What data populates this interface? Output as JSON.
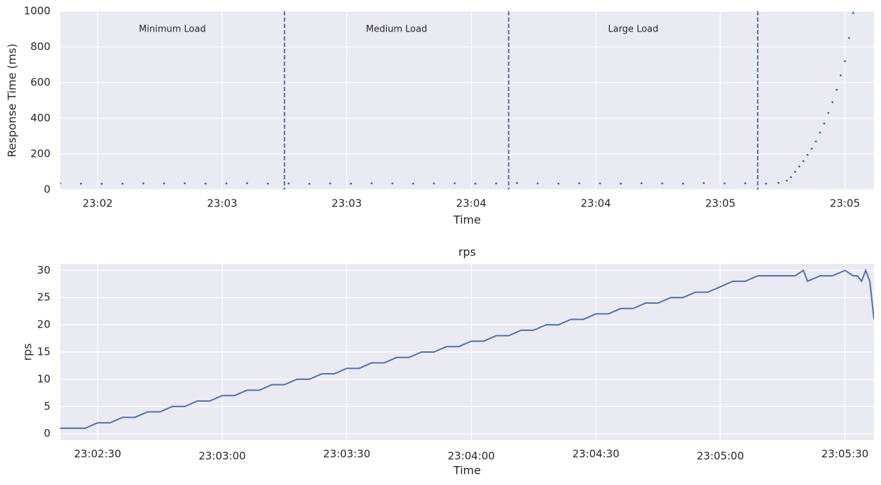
{
  "chart_data": [
    {
      "type": "scatter",
      "ylabel": "Response Time (ms)",
      "xlabel": "Time",
      "color": "#1f77b4",
      "x": [
        "23:02:21",
        "23:02:26",
        "23:02:31",
        "23:02:36",
        "23:02:41",
        "23:02:46",
        "23:02:51",
        "23:02:56",
        "23:03:01",
        "23:03:06",
        "23:03:11",
        "23:03:16",
        "23:03:21",
        "23:03:26",
        "23:03:31",
        "23:03:36",
        "23:03:41",
        "23:03:46",
        "23:03:51",
        "23:03:56",
        "23:04:01",
        "23:04:06",
        "23:04:11",
        "23:04:16",
        "23:04:21",
        "23:04:26",
        "23:04:31",
        "23:04:36",
        "23:04:41",
        "23:04:46",
        "23:04:51",
        "23:04:56",
        "23:05:01",
        "23:05:06",
        "23:05:11",
        "23:05:14",
        "23:05:16",
        "23:05:17",
        "23:05:18",
        "23:05:19",
        "23:05:20",
        "23:05:21",
        "23:05:22",
        "23:05:23",
        "23:05:24",
        "23:05:25",
        "23:05:26",
        "23:05:27",
        "23:05:28",
        "23:05:29",
        "23:05:30",
        "23:05:31",
        "23:05:32"
      ],
      "values": [
        35,
        34,
        33,
        34,
        35,
        35,
        36,
        34,
        35,
        36,
        34,
        35,
        33,
        35,
        34,
        36,
        35,
        34,
        35,
        36,
        34,
        35,
        37,
        35,
        34,
        36,
        35,
        34,
        36,
        35,
        34,
        37,
        35,
        36,
        34,
        38,
        50,
        70,
        100,
        130,
        160,
        195,
        230,
        270,
        320,
        370,
        430,
        490,
        560,
        640,
        720,
        850,
        990
      ],
      "vlines": [
        "23:03:15",
        "23:04:09",
        "23:05:09"
      ],
      "annotations": [
        "Minimum Load",
        "Medium Load",
        "Large Load"
      ],
      "xlim": [
        "23:02:21",
        "23:05:37"
      ],
      "xticks": [
        {
          "value": "23:02:30",
          "label": "23:02"
        },
        {
          "value": "23:03:00",
          "label": "23:03"
        },
        {
          "value": "23:03:30",
          "label": "23:03"
        },
        {
          "value": "23:04:00",
          "label": "23:04"
        },
        {
          "value": "23:04:30",
          "label": "23:04"
        },
        {
          "value": "23:05:00",
          "label": "23:05"
        },
        {
          "value": "23:05:30",
          "label": "23:05"
        }
      ],
      "ylim": [
        0,
        1000
      ],
      "yticks": [
        0,
        200,
        400,
        600,
        800,
        1000
      ],
      "grid": true
    },
    {
      "type": "line",
      "title": "rps",
      "ylabel": "rps",
      "xlabel": "Time",
      "color": "#4c72b0",
      "x": [
        "23:02:21",
        "23:02:24",
        "23:02:27",
        "23:02:30",
        "23:02:33",
        "23:02:36",
        "23:02:39",
        "23:02:42",
        "23:02:45",
        "23:02:48",
        "23:02:51",
        "23:02:54",
        "23:02:57",
        "23:03:00",
        "23:03:03",
        "23:03:06",
        "23:03:09",
        "23:03:12",
        "23:03:15",
        "23:03:18",
        "23:03:21",
        "23:03:24",
        "23:03:27",
        "23:03:30",
        "23:03:33",
        "23:03:36",
        "23:03:39",
        "23:03:42",
        "23:03:45",
        "23:03:48",
        "23:03:51",
        "23:03:54",
        "23:03:57",
        "23:04:00",
        "23:04:03",
        "23:04:06",
        "23:04:09",
        "23:04:12",
        "23:04:15",
        "23:04:18",
        "23:04:21",
        "23:04:24",
        "23:04:27",
        "23:04:30",
        "23:04:33",
        "23:04:36",
        "23:04:39",
        "23:04:42",
        "23:04:45",
        "23:04:48",
        "23:04:51",
        "23:04:54",
        "23:04:57",
        "23:05:00",
        "23:05:03",
        "23:05:06",
        "23:05:09",
        "23:05:12",
        "23:05:15",
        "23:05:18",
        "23:05:20",
        "23:05:21",
        "23:05:24",
        "23:05:27",
        "23:05:30",
        "23:05:32",
        "23:05:33",
        "23:05:34",
        "23:05:35",
        "23:05:36",
        "23:05:37"
      ],
      "values": [
        1,
        1,
        1,
        2,
        2,
        3,
        3,
        4,
        4,
        5,
        5,
        6,
        6,
        7,
        7,
        8,
        8,
        9,
        9,
        10,
        10,
        11,
        11,
        12,
        12,
        13,
        13,
        14,
        14,
        15,
        15,
        16,
        16,
        17,
        17,
        18,
        18,
        19,
        19,
        20,
        20,
        21,
        21,
        22,
        22,
        23,
        23,
        24,
        24,
        25,
        25,
        26,
        26,
        27,
        28,
        28,
        29,
        29,
        29,
        29,
        30,
        28,
        29,
        29,
        30,
        29,
        29,
        28,
        30,
        28,
        21
      ],
      "xlim": [
        "23:02:21",
        "23:05:37"
      ],
      "xticks": [
        "23:02:30",
        "23:03:00",
        "23:03:30",
        "23:04:00",
        "23:04:30",
        "23:05:00",
        "23:05:30"
      ],
      "ylim": [
        -1.2,
        31.2
      ],
      "yticks": [
        0,
        5,
        10,
        15,
        20,
        25,
        30
      ],
      "grid": true
    }
  ]
}
